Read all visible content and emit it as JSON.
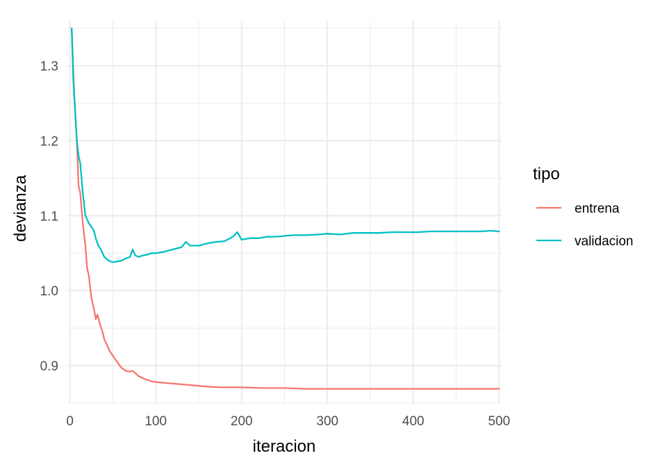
{
  "chart_data": {
    "type": "line",
    "xlabel": "iteracion",
    "ylabel": "devianza",
    "xlim": [
      -3,
      503
    ],
    "ylim": [
      0.85,
      1.36
    ],
    "x_ticks": [
      0,
      100,
      200,
      300,
      400,
      500
    ],
    "y_ticks": [
      0.9,
      1.0,
      1.1,
      1.2,
      1.3
    ],
    "grid": true,
    "legend": {
      "title": "tipo",
      "placement": "right"
    },
    "series": [
      {
        "name": "entrena",
        "color": "#F8766D",
        "x": [
          2,
          5,
          8,
          10,
          12,
          15,
          18,
          20,
          22,
          25,
          28,
          30,
          32,
          35,
          38,
          40,
          43,
          46,
          50,
          55,
          60,
          65,
          70,
          73,
          76,
          80,
          85,
          90,
          95,
          100,
          110,
          120,
          130,
          140,
          150,
          160,
          175,
          190,
          200,
          225,
          250,
          275,
          300,
          325,
          350,
          375,
          400,
          425,
          450,
          475,
          500
        ],
        "y": [
          1.35,
          1.26,
          1.2,
          1.14,
          1.13,
          1.09,
          1.06,
          1.03,
          1.02,
          0.99,
          0.975,
          0.962,
          0.968,
          0.955,
          0.945,
          0.935,
          0.928,
          0.92,
          0.913,
          0.905,
          0.897,
          0.893,
          0.892,
          0.893,
          0.89,
          0.886,
          0.883,
          0.881,
          0.879,
          0.878,
          0.877,
          0.876,
          0.875,
          0.874,
          0.873,
          0.872,
          0.871,
          0.871,
          0.871,
          0.87,
          0.87,
          0.869,
          0.869,
          0.869,
          0.869,
          0.869,
          0.869,
          0.869,
          0.869,
          0.869,
          0.869
        ]
      },
      {
        "name": "validacion",
        "color": "#00BFC4",
        "x": [
          2,
          4,
          6,
          8,
          10,
          12,
          15,
          18,
          20,
          22,
          25,
          28,
          30,
          33,
          36,
          40,
          45,
          50,
          55,
          60,
          65,
          70,
          73,
          76,
          80,
          85,
          90,
          95,
          100,
          110,
          120,
          130,
          135,
          140,
          150,
          160,
          170,
          180,
          190,
          195,
          200,
          210,
          220,
          230,
          240,
          250,
          260,
          275,
          290,
          300,
          315,
          330,
          345,
          360,
          375,
          390,
          405,
          420,
          435,
          450,
          465,
          480,
          490,
          500
        ],
        "y": [
          1.35,
          1.28,
          1.24,
          1.2,
          1.18,
          1.17,
          1.13,
          1.1,
          1.095,
          1.09,
          1.085,
          1.08,
          1.07,
          1.06,
          1.055,
          1.045,
          1.04,
          1.038,
          1.039,
          1.04,
          1.043,
          1.045,
          1.055,
          1.047,
          1.045,
          1.047,
          1.048,
          1.05,
          1.05,
          1.052,
          1.055,
          1.058,
          1.065,
          1.06,
          1.06,
          1.063,
          1.065,
          1.066,
          1.072,
          1.078,
          1.068,
          1.07,
          1.07,
          1.072,
          1.072,
          1.073,
          1.074,
          1.074,
          1.075,
          1.076,
          1.075,
          1.077,
          1.077,
          1.077,
          1.078,
          1.078,
          1.078,
          1.079,
          1.079,
          1.079,
          1.079,
          1.079,
          1.08,
          1.079
        ]
      }
    ]
  }
}
